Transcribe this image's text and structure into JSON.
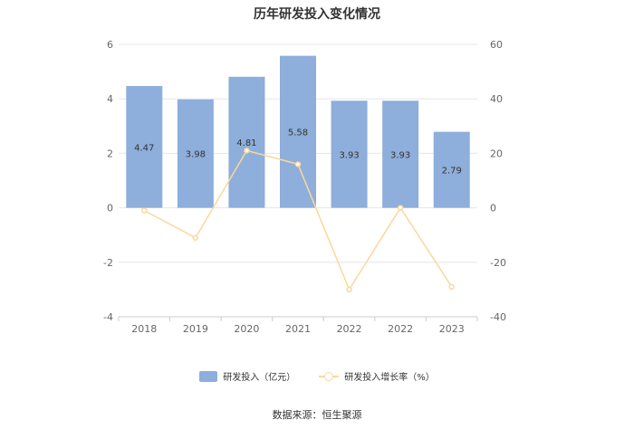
{
  "chart_data": {
    "type": "bar",
    "title": "历年研发投入变化情况",
    "categories": [
      "2018",
      "2019",
      "2020",
      "2021",
      "2022",
      "2022",
      "2023"
    ],
    "series": [
      {
        "name": "研发投入（亿元）",
        "type": "bar",
        "axis": "left",
        "values": [
          4.47,
          3.98,
          4.81,
          5.58,
          3.93,
          3.93,
          2.79
        ],
        "labels": [
          "4.47",
          "3.98",
          "4.81",
          "5.58",
          "3.93",
          "3.93",
          "2.79"
        ],
        "color": "#8eaedb"
      },
      {
        "name": "研发投入增长率（%）",
        "type": "line",
        "axis": "right",
        "values": [
          -1,
          -11,
          21,
          16,
          -30,
          0,
          -29
        ],
        "color": "#fcd79a"
      }
    ],
    "y_left": {
      "lim": [
        -4,
        6
      ],
      "ticks": [
        "-4",
        "-2",
        "0",
        "2",
        "4",
        "6"
      ]
    },
    "y_right": {
      "lim": [
        -40,
        60
      ],
      "ticks": [
        "-40",
        "-20",
        "0",
        "20",
        "40",
        "60"
      ]
    },
    "grid": true,
    "legend_position": "bottom-center",
    "source": "数据来源：恒生聚源"
  }
}
